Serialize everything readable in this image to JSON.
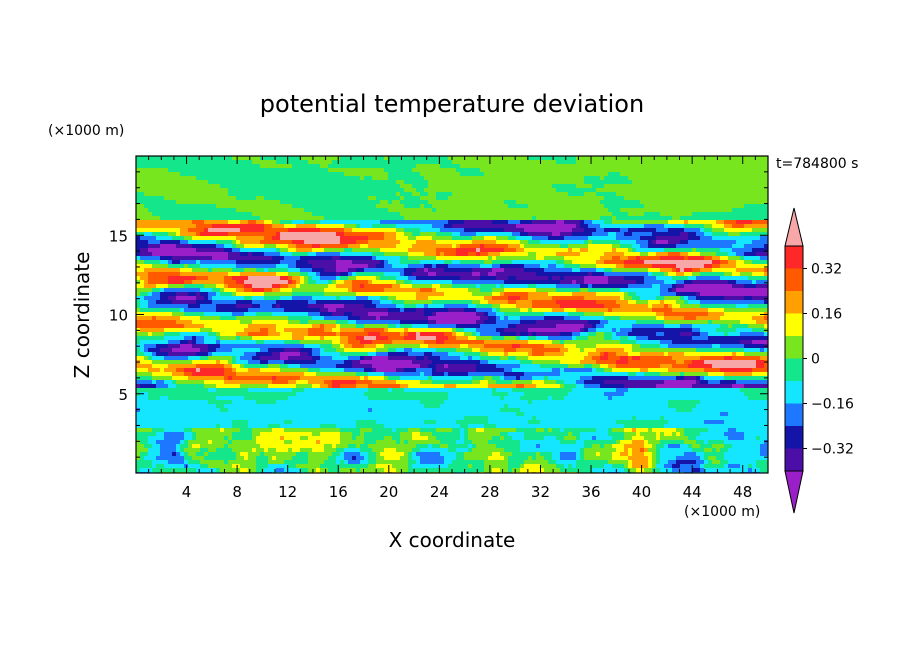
{
  "chart_data": {
    "type": "heatmap",
    "title": "potential temperature deviation",
    "xlabel": "X coordinate",
    "ylabel": "Z coordinate",
    "x_unit": "(×1000 m)",
    "y_unit": "(×1000 m)",
    "time_label": "t=784800 s",
    "xlim": [
      0,
      50
    ],
    "ylim": [
      0,
      20
    ],
    "x_ticks": [
      4,
      8,
      12,
      16,
      20,
      24,
      28,
      32,
      36,
      40,
      44,
      48
    ],
    "y_ticks": [
      5,
      10,
      15
    ],
    "colorbar": {
      "levels": [
        -0.4,
        -0.32,
        -0.24,
        -0.16,
        -0.08,
        0,
        0.08,
        0.16,
        0.24,
        0.32,
        0.4
      ],
      "labels": [
        "0.32",
        "0.16",
        "0",
        "−0.16",
        "−0.32"
      ],
      "label_values": [
        0.32,
        0.16,
        0,
        -0.16,
        -0.32
      ],
      "colors": [
        "#9b1fc8",
        "#4b0fa8",
        "#1414a8",
        "#1e78ff",
        "#14e6ff",
        "#14e68c",
        "#78e61e",
        "#ffff00",
        "#ffa000",
        "#ff5a00",
        "#ff2828",
        "#f7a7a8"
      ]
    },
    "bands": [
      {
        "z": [
          0,
          3
        ],
        "character": "near-neutral with scattered warm/cold plumes"
      },
      {
        "z": [
          3,
          5.5
        ],
        "character": "slightly negative, uniform"
      },
      {
        "z": [
          5.5,
          16
        ],
        "character": "strong alternating warm and cold layers, tilted"
      },
      {
        "z": [
          16,
          20
        ],
        "character": "near-neutral to slightly positive"
      }
    ]
  }
}
